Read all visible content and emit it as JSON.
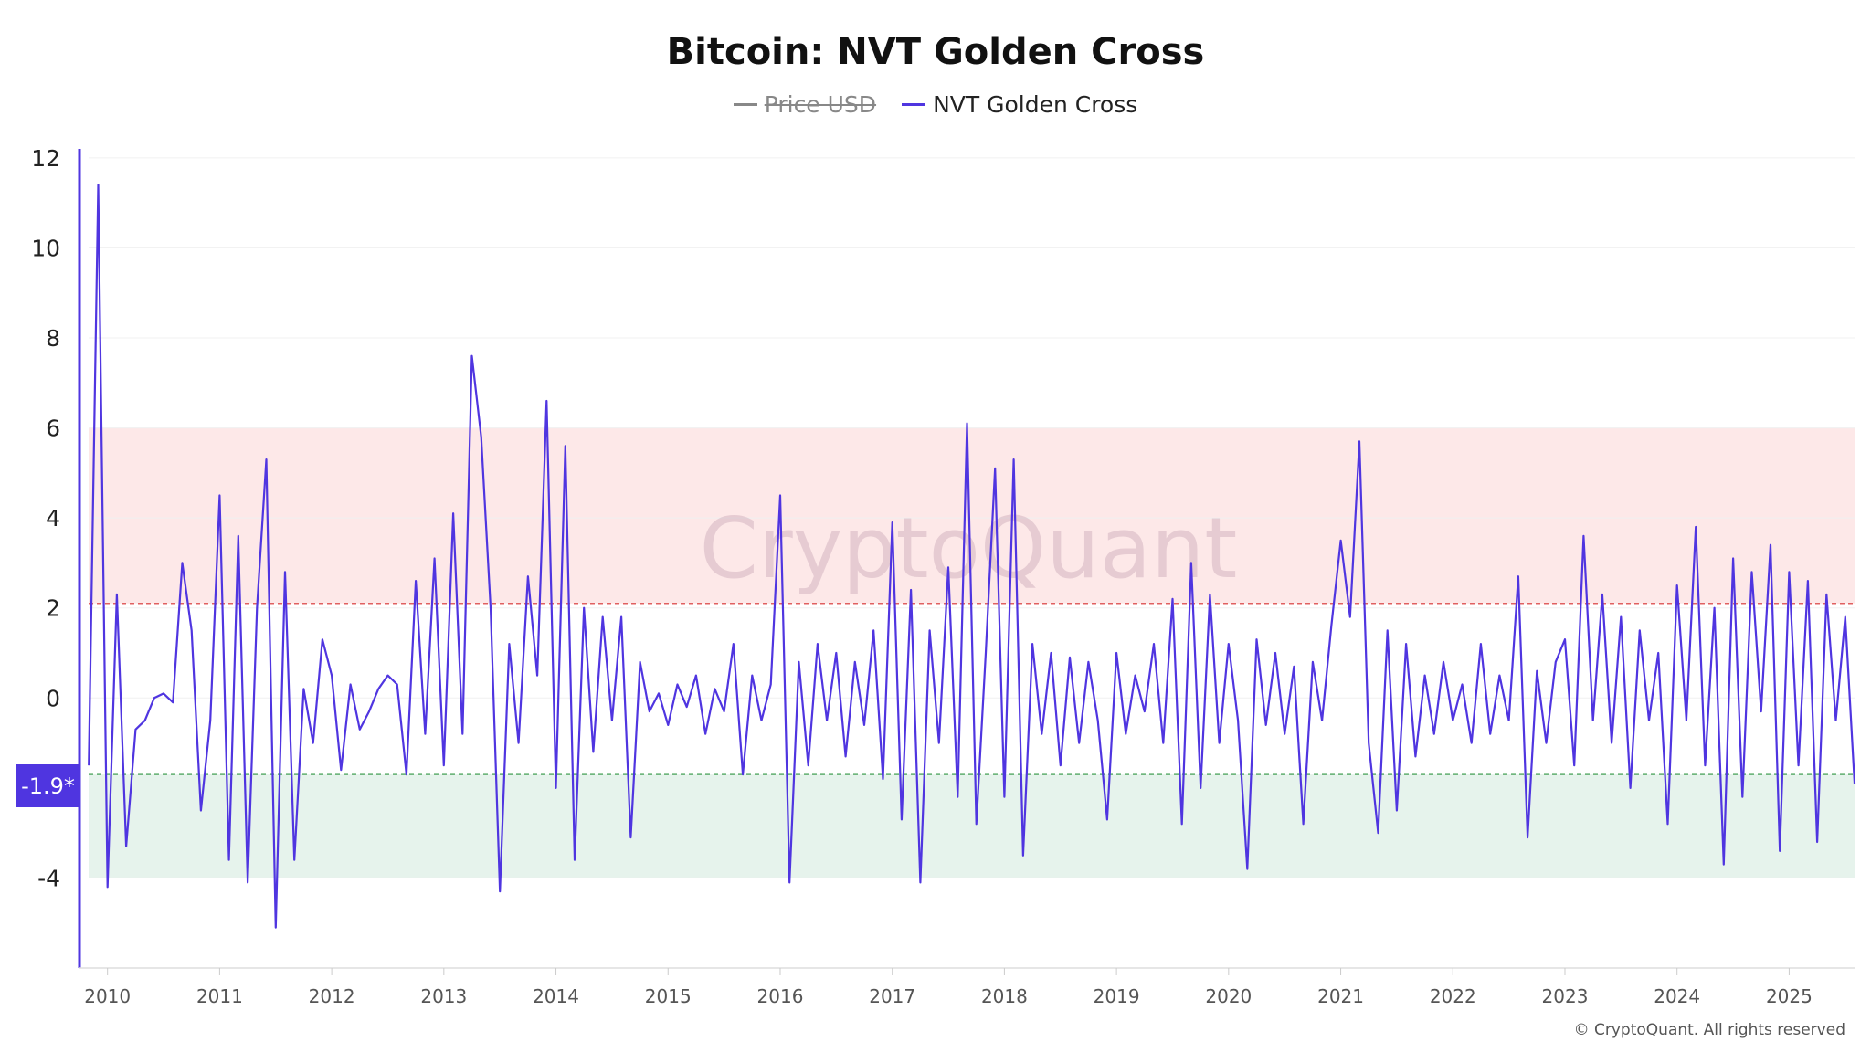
{
  "chart_data": {
    "type": "line",
    "title": "Bitcoin: NVT Golden Cross",
    "legend": [
      {
        "name": "Price USD",
        "color": "#888888",
        "hidden": true
      },
      {
        "name": "NVT Golden Cross",
        "color": "#4f35e0",
        "hidden": false
      }
    ],
    "legend_placement": "top-center",
    "ylim": [
      -6,
      12.2
    ],
    "xlim": [
      "2009-10",
      "2025-08"
    ],
    "yticks": [
      "12",
      "10",
      "8",
      "6",
      "4",
      "2",
      "0",
      "-4"
    ],
    "ytick_values": [
      12,
      10,
      8,
      6,
      4,
      2,
      0,
      -4
    ],
    "xticks": [
      "2010",
      "2011",
      "2012",
      "2013",
      "2014",
      "2015",
      "2016",
      "2017",
      "2018",
      "2019",
      "2020",
      "2021",
      "2022",
      "2023",
      "2024",
      "2025"
    ],
    "grid": "horizontal",
    "bands": [
      {
        "from": 2.1,
        "to": 6,
        "color": "#fde8e8",
        "line": 2.1,
        "line_color": "#e06060"
      },
      {
        "from": -4,
        "to": -1.7,
        "color": "#e6f3ec",
        "line": -1.7,
        "line_color": "#5fae6e"
      }
    ],
    "current_value_label": "-1.9*",
    "watermark": "CryptoQuant",
    "series": [
      {
        "name": "NVT Golden Cross",
        "color": "#4f35e0",
        "dates": [
          "2009-11",
          "2009-12",
          "2010-01",
          "2010-02",
          "2010-03",
          "2010-04",
          "2010-05",
          "2010-06",
          "2010-07",
          "2010-08",
          "2010-09",
          "2010-10",
          "2010-11",
          "2010-12",
          "2011-01",
          "2011-02",
          "2011-03",
          "2011-04",
          "2011-05",
          "2011-06",
          "2011-07",
          "2011-08",
          "2011-09",
          "2011-10",
          "2011-11",
          "2011-12",
          "2012-01",
          "2012-02",
          "2012-03",
          "2012-04",
          "2012-05",
          "2012-06",
          "2012-07",
          "2012-08",
          "2012-09",
          "2012-10",
          "2012-11",
          "2012-12",
          "2013-01",
          "2013-02",
          "2013-03",
          "2013-04",
          "2013-05",
          "2013-06",
          "2013-07",
          "2013-08",
          "2013-09",
          "2013-10",
          "2013-11",
          "2013-12",
          "2014-01",
          "2014-02",
          "2014-03",
          "2014-04",
          "2014-05",
          "2014-06",
          "2014-07",
          "2014-08",
          "2014-09",
          "2014-10",
          "2014-11",
          "2014-12",
          "2015-01",
          "2015-02",
          "2015-03",
          "2015-04",
          "2015-05",
          "2015-06",
          "2015-07",
          "2015-08",
          "2015-09",
          "2015-10",
          "2015-11",
          "2015-12",
          "2016-01",
          "2016-02",
          "2016-03",
          "2016-04",
          "2016-05",
          "2016-06",
          "2016-07",
          "2016-08",
          "2016-09",
          "2016-10",
          "2016-11",
          "2016-12",
          "2017-01",
          "2017-02",
          "2017-03",
          "2017-04",
          "2017-05",
          "2017-06",
          "2017-07",
          "2017-08",
          "2017-09",
          "2017-10",
          "2017-11",
          "2017-12",
          "2018-01",
          "2018-02",
          "2018-03",
          "2018-04",
          "2018-05",
          "2018-06",
          "2018-07",
          "2018-08",
          "2018-09",
          "2018-10",
          "2018-11",
          "2018-12",
          "2019-01",
          "2019-02",
          "2019-03",
          "2019-04",
          "2019-05",
          "2019-06",
          "2019-07",
          "2019-08",
          "2019-09",
          "2019-10",
          "2019-11",
          "2019-12",
          "2020-01",
          "2020-02",
          "2020-03",
          "2020-04",
          "2020-05",
          "2020-06",
          "2020-07",
          "2020-08",
          "2020-09",
          "2020-10",
          "2020-11",
          "2020-12",
          "2021-01",
          "2021-02",
          "2021-03",
          "2021-04",
          "2021-05",
          "2021-06",
          "2021-07",
          "2021-08",
          "2021-09",
          "2021-10",
          "2021-11",
          "2021-12",
          "2022-01",
          "2022-02",
          "2022-03",
          "2022-04",
          "2022-05",
          "2022-06",
          "2022-07",
          "2022-08",
          "2022-09",
          "2022-10",
          "2022-11",
          "2022-12",
          "2023-01",
          "2023-02",
          "2023-03",
          "2023-04",
          "2023-05",
          "2023-06",
          "2023-07",
          "2023-08",
          "2023-09",
          "2023-10",
          "2023-11",
          "2023-12",
          "2024-01",
          "2024-02",
          "2024-03",
          "2024-04",
          "2024-05",
          "2024-06",
          "2024-07",
          "2024-08",
          "2024-09",
          "2024-10",
          "2024-11",
          "2024-12",
          "2025-01",
          "2025-02",
          "2025-03",
          "2025-04",
          "2025-05",
          "2025-06",
          "2025-07",
          "2025-08"
        ],
        "values": [
          -1.5,
          11.4,
          -4.2,
          2.3,
          -3.3,
          -0.7,
          -0.5,
          0,
          0.1,
          -0.1,
          3.0,
          1.5,
          -2.5,
          -0.5,
          4.5,
          -3.6,
          3.6,
          -4.1,
          2.0,
          5.3,
          -5.1,
          2.8,
          -3.6,
          0.2,
          -1.0,
          1.3,
          0.5,
          -1.6,
          0.3,
          -0.7,
          -0.3,
          0.2,
          0.5,
          0.3,
          -1.7,
          2.6,
          -0.8,
          3.1,
          -1.5,
          4.1,
          -0.8,
          7.6,
          5.8,
          2.0,
          -4.3,
          1.2,
          -1.0,
          2.7,
          0.5,
          6.6,
          -2.0,
          5.6,
          -3.6,
          2.0,
          -1.2,
          1.8,
          -0.5,
          1.8,
          -3.1,
          0.8,
          -0.3,
          0.1,
          -0.6,
          0.3,
          -0.2,
          0.5,
          -0.8,
          0.2,
          -0.3,
          1.2,
          -1.7,
          0.5,
          -0.5,
          0.3,
          4.5,
          -4.1,
          0.8,
          -1.5,
          1.2,
          -0.5,
          1.0,
          -1.3,
          0.8,
          -0.6,
          1.5,
          -1.8,
          3.9,
          -2.7,
          2.4,
          -4.1,
          1.5,
          -1.0,
          2.9,
          -2.2,
          6.1,
          -2.8,
          1.0,
          5.1,
          -2.2,
          5.3,
          -3.5,
          1.2,
          -0.8,
          1.0,
          -1.5,
          0.9,
          -1.0,
          0.8,
          -0.5,
          -2.7,
          1.0,
          -0.8,
          0.5,
          -0.3,
          1.2,
          -1.0,
          2.2,
          -2.8,
          3.0,
          -2.0,
          2.3,
          -1.0,
          1.2,
          -0.5,
          -3.8,
          1.3,
          -0.6,
          1.0,
          -0.8,
          0.7,
          -2.8,
          0.8,
          -0.5,
          1.6,
          3.5,
          1.8,
          5.7,
          -1.0,
          -3.0,
          1.5,
          -2.5,
          1.2,
          -1.3,
          0.5,
          -0.8,
          0.8,
          -0.5,
          0.3,
          -1.0,
          1.2,
          -0.8,
          0.5,
          -0.5,
          2.7,
          -3.1,
          0.6,
          -1.0,
          0.8,
          1.3,
          -1.5,
          3.6,
          -0.5,
          2.3,
          -1.0,
          1.8,
          -2.0,
          1.5,
          -0.5,
          1.0,
          -2.8,
          2.5,
          -0.5,
          3.8,
          -1.5,
          2.0,
          -3.7,
          3.1,
          -2.2,
          2.8,
          -0.3,
          3.4,
          -3.4,
          2.8,
          -1.5,
          2.6,
          -3.2,
          2.3,
          -0.5,
          1.8,
          -1.9
        ]
      }
    ]
  },
  "footer": {
    "copyright": "© CryptoQuant. All rights reserved"
  }
}
